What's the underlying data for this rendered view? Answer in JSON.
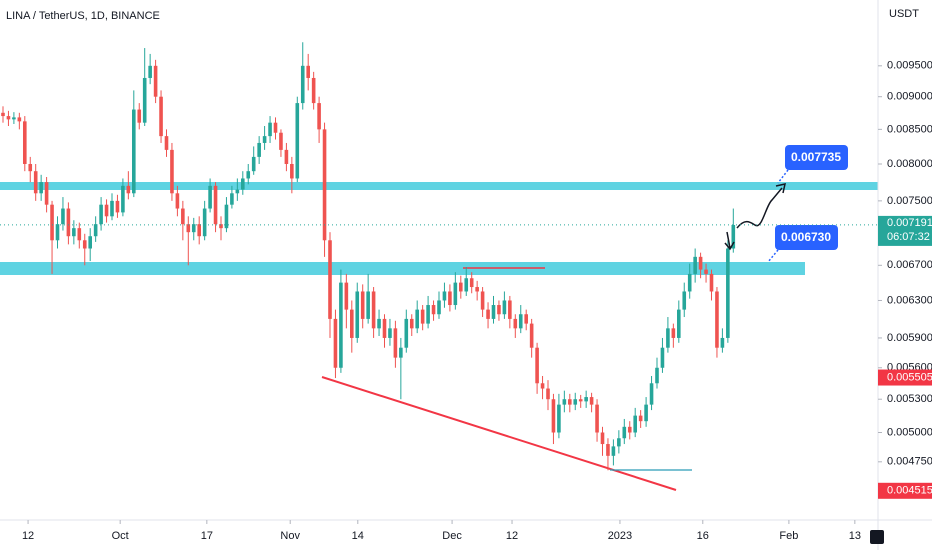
{
  "chart_data": {
    "type": "candlestick",
    "title": "LINA / TetherUS, 1D, BINANCE",
    "y_axis_label": "USDT",
    "log_scale": true,
    "up_color": "#26a69a",
    "down_color": "#ef5350",
    "xlim": [
      -0.55,
      160.55
    ],
    "ylim": [
      0.00429,
      0.01066
    ],
    "xticks": [
      {
        "value": 4.6,
        "label": "12"
      },
      {
        "value": 21.5,
        "label": "Oct"
      },
      {
        "value": 37.4,
        "label": "17"
      },
      {
        "value": 52.7,
        "label": "Nov"
      },
      {
        "value": 65.1,
        "label": "14"
      },
      {
        "value": 82.4,
        "label": "Dec"
      },
      {
        "value": 93.4,
        "label": "12"
      },
      {
        "value": 113.2,
        "label": "2023"
      },
      {
        "value": 128.4,
        "label": "16"
      },
      {
        "value": 144.2,
        "label": "Feb"
      },
      {
        "value": 156.3,
        "label": "13"
      }
    ],
    "yticks": [
      {
        "value": 0.0095,
        "label": "0.009500"
      },
      {
        "value": 0.009,
        "label": "0.009000"
      },
      {
        "value": 0.0085,
        "label": "0.008500"
      },
      {
        "value": 0.008,
        "label": "0.008000"
      },
      {
        "value": 0.0075,
        "label": "0.007500"
      },
      {
        "value": 0.0067,
        "label": "0.006700"
      },
      {
        "value": 0.0063,
        "label": "0.006300"
      },
      {
        "value": 0.0059,
        "label": "0.005900"
      },
      {
        "value": 0.0056,
        "label": "0.005600"
      },
      {
        "value": 0.0053,
        "label": "0.005300"
      },
      {
        "value": 0.005,
        "label": "0.005000"
      },
      {
        "value": 0.00475,
        "label": "0.004750"
      }
    ],
    "last_price": {
      "value": 0.007191,
      "label": "0.007191"
    },
    "countdown": "06:07:32",
    "price_markers": [
      {
        "value": 0.005505,
        "label": "0.005505"
      },
      {
        "value": 0.004515,
        "label": "0.004515"
      }
    ],
    "annotations": [
      "0.007735",
      "0.006730"
    ],
    "open": [
      0.00875,
      0.0087,
      0.00865,
      0.00868,
      0.00862,
      0.008,
      0.0079,
      0.0076,
      0.00775,
      0.00745,
      0.007,
      0.0072,
      0.0074,
      0.00705,
      0.00715,
      0.007,
      0.0069,
      0.00705,
      0.0072,
      0.00745,
      0.0073,
      0.0075,
      0.00735,
      0.0077,
      0.0076,
      0.0088,
      0.0086,
      0.0093,
      0.0095,
      0.009,
      0.0084,
      0.0082,
      0.0076,
      0.0074,
      0.0072,
      0.0071,
      0.0072,
      0.00705,
      0.0074,
      0.0077,
      0.0072,
      0.00715,
      0.00745,
      0.0076,
      0.00765,
      0.0078,
      0.0079,
      0.0081,
      0.0083,
      0.0084,
      0.0086,
      0.00845,
      0.0082,
      0.008,
      0.0078,
      0.0089,
      0.0095,
      0.0093,
      0.0089,
      0.0085,
      0.007,
      0.0061,
      0.0056,
      0.0065,
      0.0062,
      0.0059,
      0.0064,
      0.0061,
      0.0064,
      0.006,
      0.0061,
      0.0059,
      0.006,
      0.0057,
      0.0058,
      0.0061,
      0.006,
      0.0062,
      0.00605,
      0.00625,
      0.00615,
      0.0063,
      0.0064,
      0.00625,
      0.0065,
      0.0064,
      0.00655,
      0.00645,
      0.0064,
      0.0062,
      0.0061,
      0.00625,
      0.00615,
      0.0063,
      0.0061,
      0.006,
      0.00615,
      0.00605,
      0.0058,
      0.00545,
      0.0054,
      0.0053,
      0.005,
      0.00525,
      0.0053,
      0.00525,
      0.0053,
      0.00528,
      0.00532,
      0.00525,
      0.005,
      0.0049,
      0.0048,
      0.00488,
      0.00495,
      0.00505,
      0.005,
      0.00515,
      0.0051,
      0.00525,
      0.00545,
      0.0056,
      0.0058,
      0.006,
      0.0059,
      0.0062,
      0.0064,
      0.0066,
      0.0068,
      0.00665,
      0.0066,
      0.0064,
      0.0058,
      0.0059,
      0.0069
    ],
    "high": [
      0.00885,
      0.00878,
      0.00876,
      0.00875,
      0.0087,
      0.0081,
      0.008,
      0.00785,
      0.00782,
      0.0075,
      0.0073,
      0.00755,
      0.00748,
      0.00725,
      0.00722,
      0.00708,
      0.00715,
      0.0073,
      0.00755,
      0.00752,
      0.0076,
      0.00758,
      0.0078,
      0.0079,
      0.0091,
      0.0089,
      0.0098,
      0.0097,
      0.0096,
      0.0091,
      0.0085,
      0.0083,
      0.0077,
      0.0075,
      0.0073,
      0.00728,
      0.0073,
      0.0075,
      0.0078,
      0.00775,
      0.0073,
      0.00755,
      0.0077,
      0.0078,
      0.0079,
      0.008,
      0.00825,
      0.0084,
      0.00855,
      0.0087,
      0.00868,
      0.0085,
      0.0083,
      0.0081,
      0.009,
      0.0099,
      0.0097,
      0.0094,
      0.009,
      0.0086,
      0.0071,
      0.0062,
      0.00665,
      0.0066,
      0.0063,
      0.0065,
      0.00648,
      0.0066,
      0.00645,
      0.0062,
      0.00615,
      0.0061,
      0.00608,
      0.0059,
      0.0062,
      0.00615,
      0.0063,
      0.00625,
      0.00635,
      0.0063,
      0.0064,
      0.0065,
      0.00648,
      0.00662,
      0.00658,
      0.00668,
      0.00662,
      0.00652,
      0.00645,
      0.00628,
      0.00635,
      0.0063,
      0.0064,
      0.00635,
      0.00615,
      0.00625,
      0.0062,
      0.0061,
      0.00585,
      0.00552,
      0.00548,
      0.00535,
      0.00535,
      0.00538,
      0.00535,
      0.00536,
      0.00534,
      0.00538,
      0.00536,
      0.0053,
      0.00505,
      0.00495,
      0.00494,
      0.00502,
      0.00512,
      0.0051,
      0.00522,
      0.0052,
      0.00532,
      0.00552,
      0.0057,
      0.0059,
      0.00612,
      0.00605,
      0.0063,
      0.0065,
      0.00672,
      0.0069,
      0.00685,
      0.00672,
      0.00665,
      0.00645,
      0.006,
      0.007,
      0.0074
    ],
    "low": [
      0.0086,
      0.00855,
      0.00858,
      0.0085,
      0.0079,
      0.00775,
      0.0075,
      0.0075,
      0.00735,
      0.0066,
      0.0069,
      0.00712,
      0.00695,
      0.00695,
      0.0069,
      0.0067,
      0.00675,
      0.00698,
      0.00712,
      0.00722,
      0.00725,
      0.00728,
      0.0073,
      0.00752,
      0.00755,
      0.0085,
      0.00855,
      0.0092,
      0.0089,
      0.0083,
      0.0081,
      0.0075,
      0.0073,
      0.007,
      0.0067,
      0.007,
      0.00695,
      0.007,
      0.00735,
      0.0071,
      0.007,
      0.0071,
      0.0074,
      0.0075,
      0.00758,
      0.00772,
      0.00785,
      0.008,
      0.0082,
      0.0083,
      0.00835,
      0.0081,
      0.0079,
      0.0076,
      0.00775,
      0.0088,
      0.0091,
      0.0088,
      0.0083,
      0.0068,
      0.0059,
      0.0055,
      0.00555,
      0.006,
      0.00575,
      0.00585,
      0.006,
      0.00605,
      0.0059,
      0.00592,
      0.0058,
      0.00582,
      0.0056,
      0.0053,
      0.00575,
      0.00592,
      0.00595,
      0.00598,
      0.006,
      0.00608,
      0.0061,
      0.00622,
      0.00618,
      0.0062,
      0.00632,
      0.00635,
      0.00638,
      0.0063,
      0.00612,
      0.006,
      0.00605,
      0.00608,
      0.0061,
      0.006,
      0.0059,
      0.00595,
      0.00598,
      0.0057,
      0.00535,
      0.0053,
      0.0052,
      0.0049,
      0.00495,
      0.00518,
      0.00518,
      0.0052,
      0.00522,
      0.00522,
      0.00518,
      0.00492,
      0.0048,
      0.00468,
      0.00472,
      0.00482,
      0.0049,
      0.00494,
      0.00496,
      0.00504,
      0.00505,
      0.0052,
      0.0054,
      0.00555,
      0.00575,
      0.0058,
      0.00585,
      0.00612,
      0.00632,
      0.0065,
      0.00655,
      0.0065,
      0.0063,
      0.0057,
      0.00575,
      0.00585,
      0.00685
    ],
    "close": [
      0.0087,
      0.00865,
      0.00868,
      0.00862,
      0.008,
      0.0079,
      0.0076,
      0.00775,
      0.00745,
      0.007,
      0.0072,
      0.0074,
      0.00705,
      0.00715,
      0.007,
      0.0069,
      0.00705,
      0.0072,
      0.00745,
      0.0073,
      0.0075,
      0.00735,
      0.0077,
      0.0076,
      0.0088,
      0.0086,
      0.0093,
      0.0095,
      0.009,
      0.0084,
      0.0082,
      0.0076,
      0.0074,
      0.0072,
      0.0071,
      0.0072,
      0.00705,
      0.0074,
      0.0077,
      0.0072,
      0.00715,
      0.00745,
      0.0076,
      0.00765,
      0.0078,
      0.0079,
      0.0081,
      0.0083,
      0.0084,
      0.0086,
      0.00845,
      0.0082,
      0.008,
      0.0078,
      0.0089,
      0.0095,
      0.0093,
      0.0089,
      0.0085,
      0.007,
      0.0061,
      0.0056,
      0.0065,
      0.0062,
      0.0059,
      0.0064,
      0.0061,
      0.0064,
      0.006,
      0.0061,
      0.0059,
      0.006,
      0.0057,
      0.0058,
      0.0061,
      0.006,
      0.0062,
      0.00605,
      0.00625,
      0.00615,
      0.0063,
      0.0064,
      0.00625,
      0.0065,
      0.0064,
      0.00655,
      0.00645,
      0.0064,
      0.0062,
      0.0061,
      0.00625,
      0.00615,
      0.0063,
      0.0061,
      0.006,
      0.00615,
      0.00605,
      0.0058,
      0.00545,
      0.0054,
      0.0053,
      0.005,
      0.00525,
      0.0053,
      0.00525,
      0.0053,
      0.00528,
      0.00532,
      0.00525,
      0.005,
      0.0049,
      0.0048,
      0.00488,
      0.00495,
      0.00505,
      0.005,
      0.00515,
      0.0051,
      0.00525,
      0.00545,
      0.0056,
      0.0058,
      0.006,
      0.0059,
      0.0062,
      0.0064,
      0.0066,
      0.0068,
      0.00665,
      0.0066,
      0.0064,
      0.0058,
      0.0059,
      0.0069,
      0.00719
    ]
  }
}
